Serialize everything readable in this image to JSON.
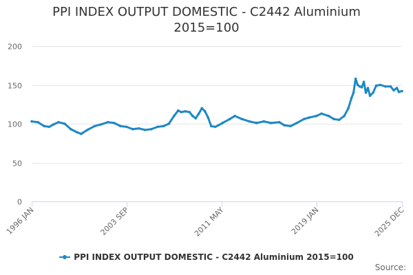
{
  "title_line1": "PPI INDEX OUTPUT DOMESTIC - C2442 Aluminium",
  "title_line2": "2015=100",
  "legend_label": "PPI INDEX OUTPUT DOMESTIC - C2442 Aluminium 2015=100",
  "credits": "Source:",
  "chart_data": {
    "type": "line",
    "title": "PPI INDEX OUTPUT DOMESTIC - C2442 Aluminium 2015=100",
    "xlabel": "",
    "ylabel": "",
    "ylim": [
      0,
      200
    ],
    "yticks": [
      0,
      50,
      100,
      150,
      200
    ],
    "xticks": [
      "1996 JAN",
      "2003 SEP",
      "2011 MAY",
      "2019 JAN",
      "2025 DEC"
    ],
    "xrange": [
      "1996-01",
      "2025-12"
    ],
    "grid": "horizontal",
    "legend_position": "bottom",
    "color": "#1e88c4",
    "series": [
      {
        "name": "PPI INDEX OUTPUT DOMESTIC - C2442 Aluminium 2015=100",
        "points": [
          [
            "1996-01",
            103
          ],
          [
            "1996-07",
            102
          ],
          [
            "1997-01",
            97
          ],
          [
            "1997-06",
            96
          ],
          [
            "1997-10",
            99
          ],
          [
            "1998-03",
            102
          ],
          [
            "1998-09",
            100
          ],
          [
            "1999-03",
            93
          ],
          [
            "1999-09",
            89
          ],
          [
            "2000-01",
            87
          ],
          [
            "2000-07",
            92
          ],
          [
            "2001-02",
            97
          ],
          [
            "2001-08",
            99
          ],
          [
            "2002-03",
            102
          ],
          [
            "2002-09",
            101
          ],
          [
            "2003-03",
            97
          ],
          [
            "2003-09",
            96
          ],
          [
            "2004-03",
            93
          ],
          [
            "2004-09",
            94
          ],
          [
            "2005-03",
            92
          ],
          [
            "2005-09",
            93
          ],
          [
            "2006-03",
            96
          ],
          [
            "2006-09",
            97
          ],
          [
            "2007-02",
            100
          ],
          [
            "2007-07",
            110
          ],
          [
            "2007-11",
            117
          ],
          [
            "2008-02",
            115
          ],
          [
            "2008-06",
            116
          ],
          [
            "2008-10",
            115
          ],
          [
            "2009-01",
            110
          ],
          [
            "2009-04",
            107
          ],
          [
            "2009-07",
            113
          ],
          [
            "2009-10",
            120
          ],
          [
            "2010-01",
            116
          ],
          [
            "2010-04",
            108
          ],
          [
            "2010-07",
            97
          ],
          [
            "2010-11",
            96
          ],
          [
            "2011-02",
            98
          ],
          [
            "2011-06",
            101
          ],
          [
            "2012-01",
            106
          ],
          [
            "2012-06",
            110
          ],
          [
            "2013-01",
            106
          ],
          [
            "2013-08",
            103
          ],
          [
            "2014-03",
            101
          ],
          [
            "2014-10",
            103
          ],
          [
            "2015-05",
            101
          ],
          [
            "2016-01",
            102
          ],
          [
            "2016-06",
            98
          ],
          [
            "2016-12",
            97
          ],
          [
            "2017-06",
            101
          ],
          [
            "2018-01",
            106
          ],
          [
            "2018-06",
            108
          ],
          [
            "2019-01",
            110
          ],
          [
            "2019-06",
            113
          ],
          [
            "2020-01",
            110
          ],
          [
            "2020-06",
            106
          ],
          [
            "2020-11",
            105
          ],
          [
            "2021-04",
            110
          ],
          [
            "2021-08",
            120
          ],
          [
            "2021-11",
            133
          ],
          [
            "2022-01",
            140
          ],
          [
            "2022-03",
            158
          ],
          [
            "2022-05",
            150
          ],
          [
            "2022-07",
            148
          ],
          [
            "2022-09",
            147
          ],
          [
            "2022-11",
            154
          ],
          [
            "2023-01",
            140
          ],
          [
            "2023-03",
            146
          ],
          [
            "2023-05",
            136
          ],
          [
            "2023-08",
            140
          ],
          [
            "2023-11",
            149
          ],
          [
            "2024-03",
            150
          ],
          [
            "2024-08",
            148
          ],
          [
            "2025-01",
            148
          ],
          [
            "2025-04",
            143
          ],
          [
            "2025-07",
            146
          ],
          [
            "2025-09",
            141
          ],
          [
            "2025-12",
            142
          ]
        ]
      }
    ]
  }
}
